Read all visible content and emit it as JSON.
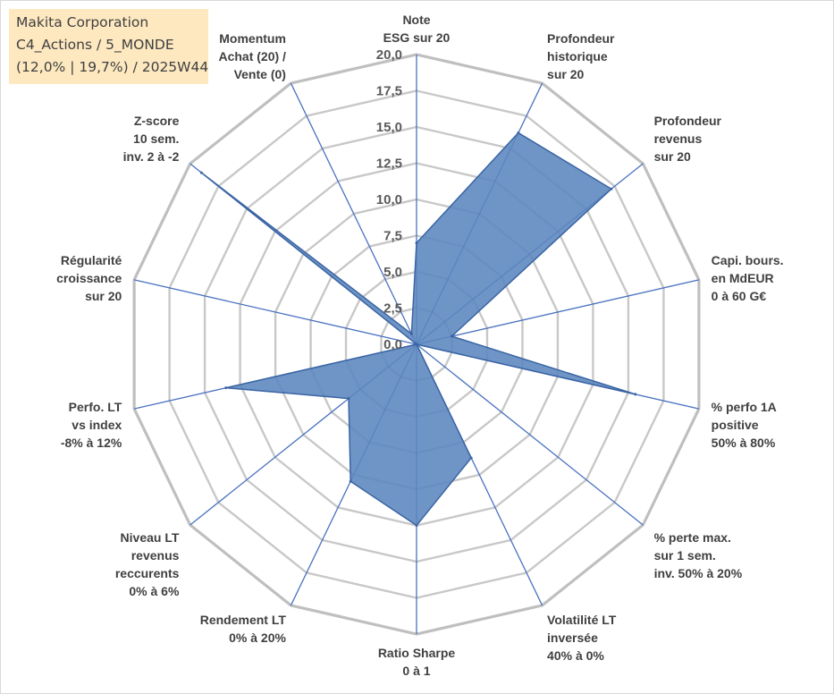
{
  "info_box": {
    "line1": "Makita Corporation",
    "line2": "C4_Actions / 5_MONDE",
    "line3": "(12,0% | 19,7%) / 2025W44"
  },
  "colors": {
    "fill": "#5b86be",
    "fill_stroke": "#3a64a4",
    "spoke": "#4a72c0",
    "grid": "#c8c8c8",
    "grid_outer": "#bfbfbf",
    "info_bg": "#fde8c0"
  },
  "chart_data": {
    "type": "radar",
    "scale": {
      "min": 0,
      "max": 20,
      "step": 2.5
    },
    "tick_labels": [
      "0,0",
      "2,5",
      "5,0",
      "7,5",
      "10,0",
      "12,5",
      "15,0",
      "17,5",
      "20,0"
    ],
    "axes": [
      [
        "Note",
        "ESG sur 20"
      ],
      [
        "Profondeur",
        "historique",
        "sur 20"
      ],
      [
        "Profondeur",
        "revenus",
        "sur 20"
      ],
      [
        "Capi. bours.",
        "en MdEUR",
        "0 à 60 G€"
      ],
      [
        "% perfo 1A",
        "positive",
        "50% à 80%"
      ],
      [
        "% perte max.",
        "sur 1 sem.",
        "inv. 50% à 20%"
      ],
      [
        "Volatilité LT",
        "inversée",
        "40% à 0%"
      ],
      [
        "Ratio Sharpe",
        "0 à 1"
      ],
      [
        "Rendement LT",
        "0% à 20%"
      ],
      [
        "Niveau LT",
        "revenus",
        "reccurents",
        "0% à 6%"
      ],
      [
        "Perfo. LT",
        "vs index",
        "-8% à 12%"
      ],
      [
        "Régularité",
        "croissance",
        "sur 20"
      ],
      [
        "Z-score",
        "10 sem.",
        "inv. 2 à -2"
      ],
      [
        "Momentum",
        "Achat (20) /",
        "Vente (0)"
      ]
    ],
    "series": [
      {
        "values": [
          7.0,
          16.2,
          17.2,
          2.5,
          15.5,
          0.0,
          8.7,
          12.5,
          10.5,
          6.0,
          13.5,
          0.0,
          19.0,
          0.8
        ]
      }
    ],
    "grid": true
  }
}
